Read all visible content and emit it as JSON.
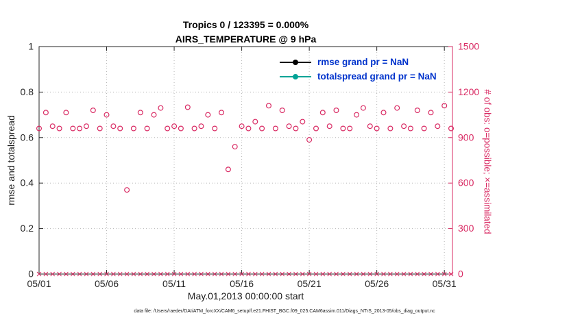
{
  "chart_data": {
    "type": "scatter",
    "title": "Tropics 0 / 123395 = 0.000%",
    "subtitle": "AIRS_TEMPERATURE @ 9 hPa",
    "xlabel": "May.01,2013 00:00:00 start",
    "ylabel_left": "rmse and totalspread",
    "ylabel_right": "# of obs: o=possible; ×=assimilated",
    "caption": "data file: /Users/raeder/DAI/ATM_forcXX/CAM6_setup/f.e21.FHIST_BGC.f09_025.CAM6assim.011/Diags_NTrS_2013-05/obs_diag_output.nc",
    "xlim": [
      1,
      31.6
    ],
    "ylim_left": [
      0,
      1
    ],
    "ylim_right": [
      0,
      1500
    ],
    "xtick_days": [
      1,
      6,
      11,
      16,
      21,
      26,
      31
    ],
    "xtick_labels": [
      "05/01",
      "05/06",
      "05/11",
      "05/16",
      "05/21",
      "05/26",
      "05/31"
    ],
    "yticks_left": [
      0,
      0.2,
      0.4,
      0.6,
      0.8,
      1
    ],
    "yticks_right": [
      0,
      300,
      600,
      900,
      1200,
      1500
    ],
    "grid": true,
    "legend_position": "top-right-inside",
    "legend": [
      {
        "label": "rmse grand pr = NaN",
        "color": "#000000",
        "marker": "dot-line"
      },
      {
        "label": "totalspread grand pr = NaN",
        "color": "#00a396",
        "marker": "dot-line"
      }
    ],
    "colors": {
      "accent": "#d92a63",
      "axis": "#262626",
      "grid": "#b5b5b5",
      "legend_text": "#0033cc"
    },
    "series": [
      {
        "name": "# of obs possible",
        "marker": "o",
        "axis": "right",
        "points": [
          [
            1,
            960
          ],
          [
            1.5,
            1065
          ],
          [
            2,
            975
          ],
          [
            2.5,
            960
          ],
          [
            3,
            1065
          ],
          [
            3.5,
            960
          ],
          [
            4,
            960
          ],
          [
            4.5,
            975
          ],
          [
            5,
            1080
          ],
          [
            5.5,
            960
          ],
          [
            6,
            1050
          ],
          [
            6.5,
            975
          ],
          [
            7,
            960
          ],
          [
            7.5,
            555
          ],
          [
            8,
            960
          ],
          [
            8.5,
            1065
          ],
          [
            9,
            960
          ],
          [
            9.5,
            1050
          ],
          [
            10,
            1095
          ],
          [
            10.5,
            960
          ],
          [
            11,
            975
          ],
          [
            11.5,
            960
          ],
          [
            12,
            1100
          ],
          [
            12.5,
            960
          ],
          [
            13,
            975
          ],
          [
            13.5,
            1050
          ],
          [
            14,
            960
          ],
          [
            14.5,
            1065
          ],
          [
            15,
            690
          ],
          [
            15.5,
            840
          ],
          [
            16,
            975
          ],
          [
            16.5,
            960
          ],
          [
            17,
            1005
          ],
          [
            17.5,
            960
          ],
          [
            18,
            1110
          ],
          [
            18.5,
            960
          ],
          [
            19,
            1080
          ],
          [
            19.5,
            975
          ],
          [
            20,
            960
          ],
          [
            20.5,
            1005
          ],
          [
            21,
            885
          ],
          [
            21.5,
            960
          ],
          [
            22,
            1065
          ],
          [
            22.5,
            975
          ],
          [
            23,
            1080
          ],
          [
            23.5,
            960
          ],
          [
            24,
            960
          ],
          [
            24.5,
            1050
          ],
          [
            25,
            1095
          ],
          [
            25.5,
            975
          ],
          [
            26,
            960
          ],
          [
            26.5,
            1065
          ],
          [
            27,
            960
          ],
          [
            27.5,
            1095
          ],
          [
            28,
            975
          ],
          [
            28.5,
            960
          ],
          [
            29,
            1080
          ],
          [
            29.5,
            960
          ],
          [
            30,
            1065
          ],
          [
            30.5,
            975
          ],
          [
            31,
            1110
          ],
          [
            31.5,
            960
          ]
        ]
      },
      {
        "name": "# of obs assimilated",
        "marker": "x",
        "axis": "right",
        "value": 0,
        "x_range": {
          "start": 1,
          "end": 31.5,
          "step": 0.5
        }
      }
    ]
  }
}
